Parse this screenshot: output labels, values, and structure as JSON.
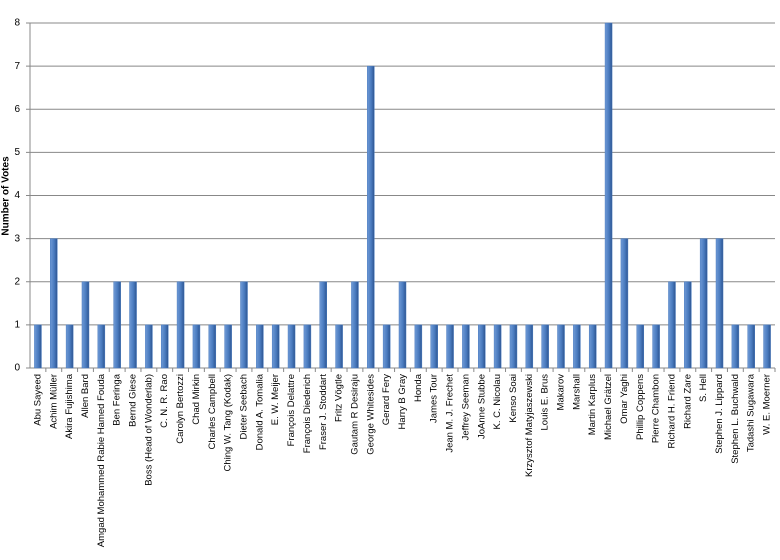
{
  "chart_data": {
    "type": "bar",
    "y_label": "Number of Votes",
    "categories": [
      "Abu Sayeed",
      "Achim Müller",
      "Akira Fujishima",
      "Allen Bard",
      "Amgad Mohammed Rabie Hamed Fouda",
      "Ben Feringa",
      "Bernd Giese",
      "Boss (Head of Wonderlab)",
      "C. N. R. Rao",
      "Carolyn Bertozzi",
      "Chad Mirkin",
      "Charles Campbell",
      "Ching W. Tang (Kodak)",
      "Dieter Seebach",
      "Donald A. Tomalia",
      "E. W. Meijer",
      "François Delattre",
      "François Diederich",
      "Fraser J. Stoddart",
      "Fritz Vögtle",
      "Gautam R Desiraju",
      "George Whitesides",
      "Gerard Fery",
      "Harry B Gray",
      "Honda",
      "James Tour",
      "Jean M. J. Frechet",
      "Jeffrey Seeman",
      "JoAnne Stubbe",
      "K. C. Nicolau",
      "Kenso Soai",
      "Krzysztof Matyjaszewski",
      "Louis E. Brus",
      "Makarov",
      "Marshall",
      "Martin Karplus",
      "Michael Grätzel",
      "Omar Yaghi",
      "Phillip Coppens",
      "Pierre Chambon",
      "Richard H. Friend",
      "Richard Zare",
      "S. Hell",
      "Stephen J. Lippard",
      "Stephen L. Buchwald",
      "Tadashi Sugawara",
      "W. E. Moerner"
    ],
    "values": [
      1,
      3,
      1,
      2,
      1,
      2,
      2,
      1,
      1,
      2,
      1,
      1,
      1,
      2,
      1,
      1,
      1,
      1,
      2,
      1,
      2,
      7,
      1,
      2,
      1,
      1,
      1,
      1,
      1,
      1,
      1,
      1,
      1,
      1,
      1,
      1,
      8,
      3,
      1,
      1,
      2,
      2,
      3,
      3,
      1,
      1,
      1
    ],
    "color": "#4a7bbf",
    "ylim": [
      0,
      8
    ],
    "yticks": [
      0,
      1,
      2,
      3,
      4,
      5,
      6,
      7,
      8
    ],
    "grid": true
  }
}
